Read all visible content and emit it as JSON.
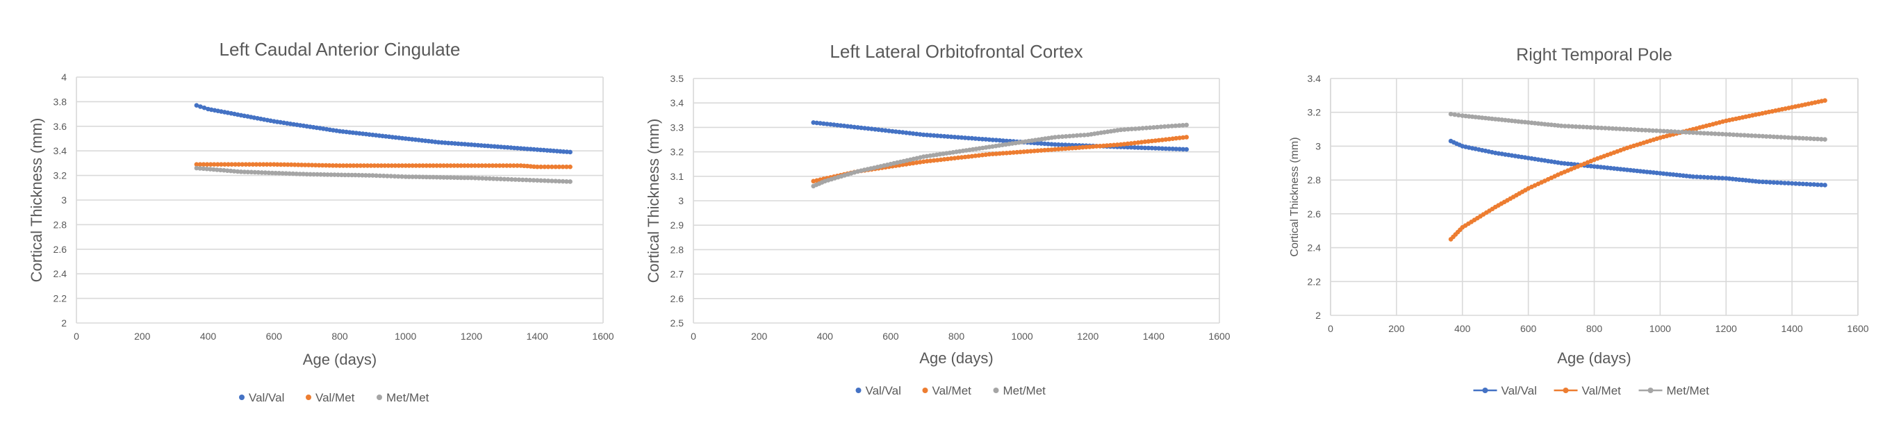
{
  "colors": {
    "val_val": "#4472c4",
    "val_met": "#ed7d31",
    "met_met": "#a5a5a5",
    "grid": "#d9d9d9",
    "axis_text": "#595959"
  },
  "chart_data": [
    {
      "type": "scatter",
      "title": "Left Caudal Anterior Cingulate",
      "xlabel": "Age (days)",
      "ylabel": "Cortical Thickness (mm)",
      "xlim": [
        0,
        1600
      ],
      "ylim": [
        2,
        4
      ],
      "xticks": [
        0,
        200,
        400,
        600,
        800,
        1000,
        1200,
        1400,
        1600
      ],
      "xtick_labels": [
        "0",
        "200",
        "400",
        "600",
        "800",
        "1000",
        "1200",
        "1400",
        "1600"
      ],
      "yticks": [
        2,
        2.2,
        2.4,
        2.6,
        2.8,
        3,
        3.2,
        3.4,
        3.6,
        3.8,
        4
      ],
      "ytick_labels": [
        "2",
        "2.2",
        "2.4",
        "2.6",
        "2.8",
        "3",
        "3.2",
        "3.4",
        "3.6",
        "3.8",
        "4"
      ],
      "legend_style": "markers",
      "legend_position": "bottom",
      "series": [
        {
          "name": "Val/Val",
          "color_key": "val_val",
          "x": [
            365,
            400,
            500,
            600,
            700,
            800,
            900,
            1000,
            1100,
            1200,
            1300,
            1400,
            1500
          ],
          "y": [
            3.77,
            3.74,
            3.69,
            3.64,
            3.6,
            3.56,
            3.53,
            3.5,
            3.47,
            3.45,
            3.43,
            3.41,
            3.39
          ]
        },
        {
          "name": "Val/Met",
          "color_key": "val_met",
          "x": [
            365,
            600,
            800,
            1000,
            1200,
            1350,
            1400,
            1500
          ],
          "y": [
            3.29,
            3.29,
            3.28,
            3.28,
            3.28,
            3.28,
            3.27,
            3.27
          ]
        },
        {
          "name": "Met/Met",
          "color_key": "met_met",
          "x": [
            365,
            500,
            700,
            900,
            1000,
            1200,
            1300,
            1400,
            1500
          ],
          "y": [
            3.26,
            3.23,
            3.21,
            3.2,
            3.19,
            3.18,
            3.17,
            3.16,
            3.15
          ]
        }
      ]
    },
    {
      "type": "scatter",
      "title": "Left Lateral Orbitofrontal Cortex",
      "xlabel": "Age (days)",
      "ylabel": "Cortical Thickness (mm)",
      "xlim": [
        0,
        1600
      ],
      "ylim": [
        2.5,
        3.5
      ],
      "xticks": [
        0,
        200,
        400,
        600,
        800,
        1000,
        1200,
        1400,
        1600
      ],
      "xtick_labels": [
        "0",
        "200",
        "400",
        "600",
        "800",
        "1000",
        "1200",
        "1400",
        "1600"
      ],
      "yticks": [
        2.5,
        2.6,
        2.7,
        2.8,
        2.9,
        3,
        3.1,
        3.2,
        3.3,
        3.4,
        3.5
      ],
      "ytick_labels": [
        "2.5",
        "2.6",
        "2.7",
        "2.8",
        "2.9",
        "3",
        "3.1",
        "3.2",
        "3.3",
        "3.4",
        "3.5"
      ],
      "legend_style": "markers",
      "legend_position": "bottom",
      "series": [
        {
          "name": "Val/Val",
          "color_key": "val_val",
          "x": [
            365,
            500,
            700,
            900,
            1100,
            1300,
            1500
          ],
          "y": [
            3.32,
            3.3,
            3.27,
            3.25,
            3.23,
            3.22,
            3.21
          ]
        },
        {
          "name": "Val/Met",
          "color_key": "val_met",
          "x": [
            365,
            500,
            700,
            900,
            1100,
            1300,
            1500
          ],
          "y": [
            3.08,
            3.12,
            3.16,
            3.19,
            3.21,
            3.23,
            3.26
          ]
        },
        {
          "name": "Met/Met",
          "color_key": "met_met",
          "x": [
            365,
            400,
            500,
            600,
            700,
            800,
            900,
            1000,
            1100,
            1200,
            1300,
            1400,
            1500
          ],
          "y": [
            3.06,
            3.08,
            3.12,
            3.15,
            3.18,
            3.2,
            3.22,
            3.24,
            3.26,
            3.27,
            3.29,
            3.3,
            3.31
          ]
        }
      ]
    },
    {
      "type": "line",
      "title": "Right Temporal Pole",
      "xlabel": "Age (days)",
      "ylabel": "Cortical Thickness (mm)",
      "xlim": [
        0,
        1600
      ],
      "ylim": [
        2,
        3.4
      ],
      "xticks": [
        0,
        200,
        400,
        600,
        800,
        1000,
        1200,
        1400,
        1600
      ],
      "xtick_labels": [
        "0",
        "200",
        "400",
        "600",
        "800",
        "1000",
        "1200",
        "1400",
        "1600"
      ],
      "yticks": [
        2,
        2.2,
        2.4,
        2.6,
        2.8,
        3,
        3.2,
        3.4
      ],
      "ytick_labels": [
        "2",
        "2.2",
        "2.4",
        "2.6",
        "2.8",
        "3",
        "3.2",
        "3.4"
      ],
      "legend_style": "line-markers",
      "legend_position": "bottom",
      "vertical_grid": true,
      "series": [
        {
          "name": "Val/Val",
          "color_key": "val_val",
          "x": [
            365,
            400,
            500,
            600,
            700,
            800,
            900,
            1000,
            1100,
            1200,
            1300,
            1400,
            1500
          ],
          "y": [
            3.03,
            3.0,
            2.96,
            2.93,
            2.9,
            2.88,
            2.86,
            2.84,
            2.82,
            2.81,
            2.79,
            2.78,
            2.77
          ]
        },
        {
          "name": "Val/Met",
          "color_key": "val_met",
          "x": [
            365,
            400,
            500,
            600,
            700,
            800,
            900,
            1000,
            1100,
            1200,
            1300,
            1400,
            1500
          ],
          "y": [
            2.45,
            2.52,
            2.64,
            2.75,
            2.84,
            2.92,
            2.99,
            3.05,
            3.1,
            3.15,
            3.19,
            3.23,
            3.27
          ]
        },
        {
          "name": "Met/Met",
          "color_key": "met_met",
          "x": [
            365,
            400,
            500,
            600,
            700,
            800,
            900,
            1000,
            1100,
            1200,
            1300,
            1400,
            1500
          ],
          "y": [
            3.19,
            3.18,
            3.16,
            3.14,
            3.12,
            3.11,
            3.1,
            3.09,
            3.08,
            3.07,
            3.06,
            3.05,
            3.04
          ]
        }
      ]
    }
  ]
}
